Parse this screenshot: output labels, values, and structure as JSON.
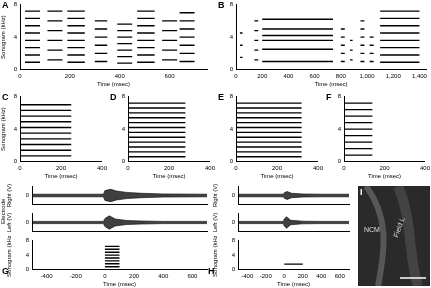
{
  "chart_data": [
    {
      "panel": "A",
      "type": "spectrogram",
      "x_label": "Time (msec)",
      "y_label": "Sonogram (kHz)",
      "xlim": [
        0,
        750
      ],
      "xticks": [
        0,
        200,
        400,
        600
      ],
      "ylim": [
        0,
        8
      ],
      "yticks": [
        0,
        4,
        8
      ],
      "syllables": [
        {
          "t": [
            20,
            80
          ],
          "f": [
            0.9,
            1.8,
            2.7,
            3.6,
            4.5,
            5.4,
            6.3,
            7.2
          ]
        },
        {
          "t": [
            110,
            170
          ],
          "f": [
            1.2,
            2.4,
            3.6,
            4.8,
            6.0,
            7.2
          ]
        },
        {
          "t": [
            190,
            260
          ],
          "f": [
            0.9,
            1.8,
            2.7,
            3.6,
            4.5,
            5.4,
            6.3,
            7.2
          ]
        },
        {
          "t": [
            300,
            350
          ],
          "f": [
            1.0,
            2.0,
            3.0,
            4.0,
            5.0,
            6.0
          ]
        },
        {
          "t": [
            390,
            450
          ],
          "f": [
            0.8,
            1.6,
            2.4,
            3.2,
            4.0,
            4.8,
            5.6
          ]
        },
        {
          "t": [
            470,
            540
          ],
          "f": [
            0.9,
            1.8,
            2.7,
            3.6,
            4.5,
            5.4,
            6.3,
            7.2
          ]
        },
        {
          "t": [
            570,
            630
          ],
          "f": [
            1.2,
            2.4,
            3.6,
            4.8,
            6.0
          ]
        },
        {
          "t": [
            640,
            700
          ],
          "f": [
            1.0,
            2.0,
            3.0,
            4.0,
            5.0,
            6.0,
            7.0
          ]
        }
      ]
    },
    {
      "panel": "B",
      "type": "spectrogram",
      "x_label": "Time (msec)",
      "y_label": null,
      "xlim": [
        0,
        1450
      ],
      "xticks": [
        0,
        200,
        400,
        600,
        800,
        1000,
        1200,
        1400
      ],
      "ylim": [
        0,
        8
      ],
      "yticks": [
        0,
        4,
        8
      ],
      "syllables": [
        {
          "t": [
            30,
            50
          ],
          "f": [
            1.5,
            3.0,
            4.5
          ]
        },
        {
          "t": [
            140,
            170
          ],
          "f": [
            1.2,
            2.4,
            3.6,
            4.8,
            6.0
          ]
        },
        {
          "t": [
            200,
            740
          ],
          "f": [
            1.0,
            2.5,
            3.6,
            4.2,
            5.0,
            6.2
          ]
        },
        {
          "t": [
            800,
            830
          ],
          "f": [
            1.0,
            2.0,
            3.0,
            4.0,
            5.0
          ]
        },
        {
          "t": [
            870,
            890
          ],
          "f": [
            1.2,
            2.4,
            3.6
          ]
        },
        {
          "t": [
            950,
            980
          ],
          "f": [
            1.0,
            2.0,
            3.0,
            4.0,
            5.0,
            6.0
          ]
        },
        {
          "t": [
            1020,
            1050
          ],
          "f": [
            1.0,
            2.0,
            3.0,
            4.0
          ]
        },
        {
          "t": [
            1100,
            1400
          ],
          "f": [
            0.9,
            1.8,
            2.7,
            3.6,
            4.5,
            5.4,
            6.3,
            7.2
          ]
        }
      ]
    },
    {
      "panel": "C",
      "type": "spectrogram",
      "x_label": "Time (msec)",
      "y_label": "Sonogram (kHz)",
      "xlim": [
        0,
        400
      ],
      "xticks": [
        0,
        200,
        400
      ],
      "ylim": [
        0,
        8
      ],
      "yticks": [
        0,
        4,
        8
      ],
      "syllables": [
        {
          "t": [
            0,
            250
          ],
          "f": [
            0.7,
            1.4,
            2.1,
            2.8,
            3.5,
            4.2,
            4.9,
            5.6,
            6.3,
            7.0
          ]
        }
      ]
    },
    {
      "panel": "D",
      "type": "spectrogram",
      "x_label": "Time (msec)",
      "y_label": null,
      "xlim": [
        0,
        400
      ],
      "xticks": [
        0,
        200,
        400
      ],
      "ylim": [
        0,
        8
      ],
      "yticks": [
        0,
        4,
        8
      ],
      "syllables": [
        {
          "t": [
            0,
            280
          ],
          "f": [
            0.6,
            1.2,
            1.8,
            2.4,
            3.0,
            3.6,
            4.2,
            4.8,
            5.4,
            6.0,
            6.6,
            7.2
          ]
        }
      ]
    },
    {
      "panel": "E",
      "type": "spectrogram",
      "x_label": "Time (msec)",
      "y_label": null,
      "xlim": [
        0,
        400
      ],
      "xticks": [
        0,
        200,
        400
      ],
      "ylim": [
        0,
        8
      ],
      "yticks": [
        0,
        4,
        8
      ],
      "syllables": [
        {
          "t": [
            0,
            320
          ],
          "f": [
            0.6,
            1.2,
            1.8,
            2.4,
            3.0,
            3.6,
            4.2,
            4.8,
            5.4,
            6.0,
            6.6,
            7.2
          ]
        }
      ]
    },
    {
      "panel": "F",
      "type": "spectrogram",
      "x_label": "Time (msec)",
      "y_label": null,
      "xlim": [
        0,
        400
      ],
      "xticks": [
        0,
        200,
        400
      ],
      "ylim": [
        0,
        8
      ],
      "yticks": [
        0,
        4,
        8
      ],
      "syllables": [
        {
          "t": [
            0,
            140
          ],
          "f": [
            0.8,
            1.6,
            2.4,
            3.2,
            4.0,
            4.8,
            5.6,
            6.4,
            7.2
          ]
        }
      ]
    },
    {
      "panel": "G",
      "type": "recording",
      "x_label": "Time (msec)",
      "group_label": "Electrode",
      "xlim": [
        -500,
        700
      ],
      "xticks": [
        -400,
        -200,
        0,
        200,
        400,
        600
      ],
      "trace_ylim": [
        -4,
        4
      ],
      "trace_yticks": [
        0
      ],
      "traces": [
        {
          "name": "Right (V)",
          "x": [
            -500,
            -10,
            0,
            40,
            80,
            150,
            250,
            400,
            700
          ],
          "upper": [
            0.6,
            0.6,
            2.2,
            2.8,
            2.0,
            1.4,
            1.0,
            0.7,
            0.6
          ],
          "lower": [
            -0.6,
            -0.6,
            -2.2,
            -2.8,
            -2.0,
            -1.4,
            -1.0,
            -0.7,
            -0.6
          ]
        },
        {
          "name": "Left (V)",
          "x": [
            -500,
            -10,
            0,
            30,
            70,
            150,
            250,
            400,
            700
          ],
          "upper": [
            0.5,
            0.5,
            1.8,
            3.0,
            1.6,
            0.9,
            0.7,
            0.5,
            0.5
          ],
          "lower": [
            -0.5,
            -0.5,
            -1.8,
            -3.0,
            -1.6,
            -0.9,
            -0.7,
            -0.5,
            -0.5
          ]
        }
      ],
      "sonogram": {
        "y_label": "Sonogram (kHz)",
        "ylim": [
          0,
          8
        ],
        "yticks": [
          0,
          4,
          8
        ],
        "syllables": [
          {
            "t": [
              0,
              100
            ],
            "f": [
              0.8,
              1.6,
              2.4,
              3.2,
              4.0,
              4.8,
              5.6,
              6.4
            ]
          }
        ]
      }
    },
    {
      "panel": "H",
      "type": "recording",
      "x_label": "Time (msec)",
      "group_label": null,
      "xlim": [
        -500,
        700
      ],
      "xticks": [
        -400,
        -200,
        0,
        200,
        400,
        600
      ],
      "trace_ylim": [
        -4,
        4
      ],
      "trace_yticks": [
        0
      ],
      "traces": [
        {
          "name": "Right (V)",
          "x": [
            -500,
            -10,
            0,
            30,
            80,
            200,
            400,
            700
          ],
          "upper": [
            0.6,
            0.6,
            1.2,
            1.8,
            1.0,
            0.7,
            0.6,
            0.6
          ],
          "lower": [
            -0.6,
            -0.6,
            -1.2,
            -1.8,
            -1.0,
            -0.7,
            -0.6,
            -0.6
          ]
        },
        {
          "name": "Left (V)",
          "x": [
            -500,
            -10,
            0,
            25,
            70,
            200,
            400,
            700
          ],
          "upper": [
            0.5,
            0.5,
            1.6,
            2.6,
            1.0,
            0.6,
            0.5,
            0.5
          ],
          "lower": [
            -0.5,
            -0.5,
            -1.6,
            -2.6,
            -1.0,
            -0.6,
            -0.5,
            -0.5
          ]
        }
      ],
      "sonogram": {
        "y_label": "Sonogram (kHz)",
        "ylim": [
          0,
          8
        ],
        "yticks": [
          0,
          4,
          8
        ],
        "syllables": [
          {
            "t": [
              0,
              200
            ],
            "f": [
              1.5
            ]
          }
        ]
      }
    }
  ],
  "image": {
    "panel": "I",
    "labels": [
      "NCM",
      "Field L"
    ]
  }
}
